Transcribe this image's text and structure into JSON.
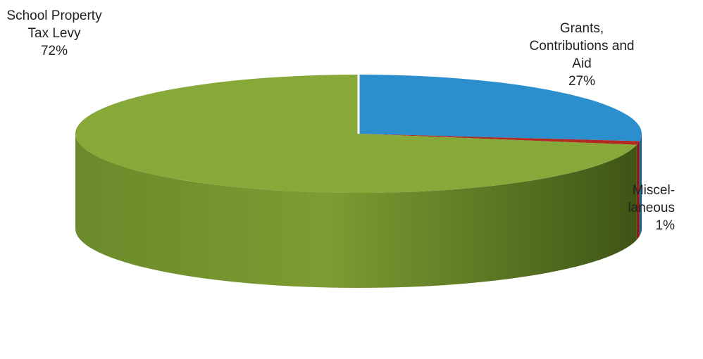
{
  "chart_data": {
    "type": "pie",
    "style": "3d",
    "title": "",
    "slices": [
      {
        "label_lines": [
          "Grants,",
          "Contributions and",
          "Aid"
        ],
        "pct_label": "27%",
        "value": 27,
        "color": "#2b8fcd"
      },
      {
        "label_lines": [
          "Miscel-",
          "laneous"
        ],
        "pct_label": "1%",
        "value": 1,
        "color": "#b02a22"
      },
      {
        "label_lines": [
          "School Property",
          "Tax Levy"
        ],
        "pct_label": "72%",
        "value": 72,
        "color": "#87a93a"
      }
    ],
    "legend": "none"
  }
}
